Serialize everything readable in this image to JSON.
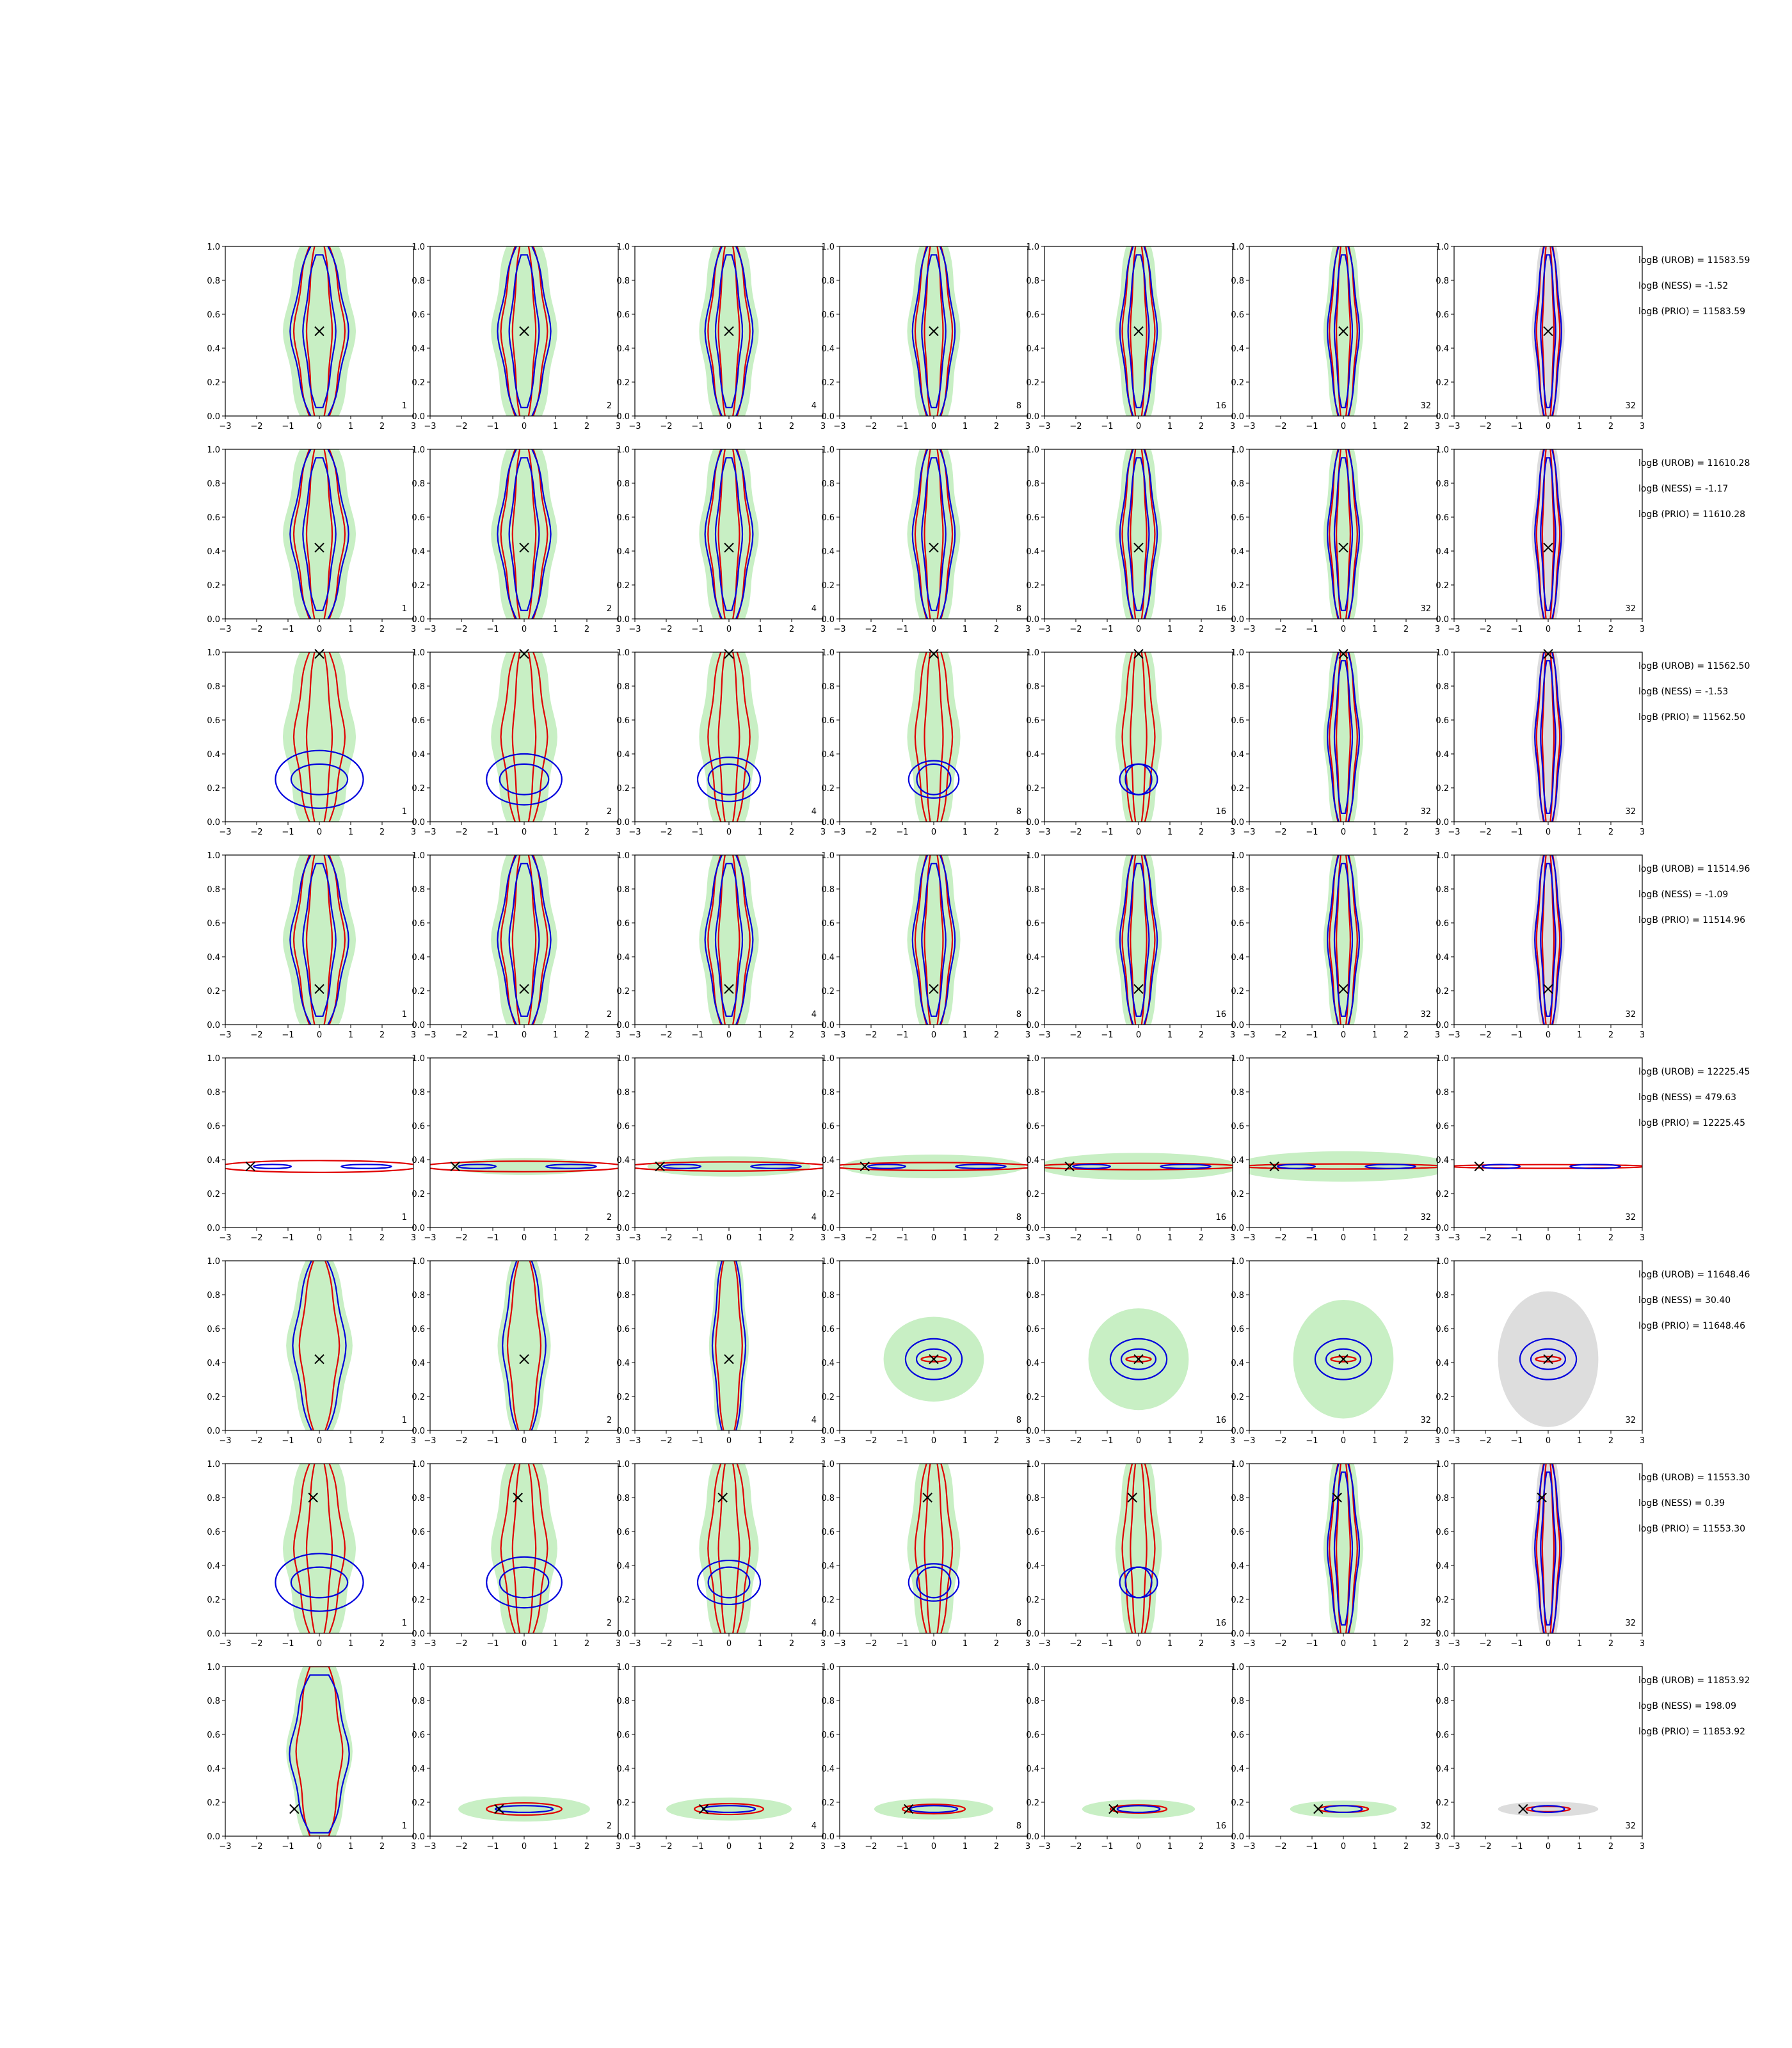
{
  "chart_data": {
    "type": "contour-grid",
    "xlim": [
      -3,
      3
    ],
    "ylim": [
      0,
      1
    ],
    "xticks": [
      -3,
      -2,
      -1,
      0,
      1,
      2,
      3
    ],
    "yticks": [
      0.0,
      0.2,
      0.4,
      0.6,
      0.8,
      1.0
    ],
    "ytick_labels": [
      "0.0",
      "0.2",
      "0.4",
      "0.6",
      "0.8",
      "1.0"
    ],
    "grid": false,
    "colors": {
      "green_fill": "#c8efc4",
      "grey_fill": "#dddddd",
      "red_contour": "#e00000",
      "blue_contour": "#0000dd",
      "marker": "#000000"
    },
    "panel_labels": [
      [
        "1",
        "2",
        "4",
        "8",
        "16",
        "32",
        "32"
      ],
      [
        "1",
        "2",
        "4",
        "8",
        "16",
        "32",
        "32"
      ],
      [
        "1",
        "2",
        "4",
        "8",
        "16",
        "32",
        "32"
      ],
      [
        "1",
        "2",
        "4",
        "8",
        "16",
        "32",
        "32"
      ],
      [
        "1",
        "2",
        "4",
        "8",
        "16",
        "32",
        "32"
      ],
      [
        "1",
        "2",
        "4",
        "8",
        "16",
        "32",
        "32"
      ],
      [
        "1",
        "2",
        "4",
        "8",
        "16",
        "32",
        "32"
      ],
      [
        "1",
        "2",
        "4",
        "8",
        "16",
        "32",
        "32"
      ]
    ],
    "rows": [
      {
        "mode": "vertical",
        "cross": [
          0,
          0.5
        ],
        "stats": [
          "logB (UROB) = 11583.59",
          "logB (NESS) = -1.52",
          "logB (PRIO) = 11583.59"
        ]
      },
      {
        "mode": "vertical",
        "cross": [
          0,
          0.42
        ],
        "stats": [
          "logB (UROB) = 11610.28",
          "logB (NESS) = -1.17",
          "logB (PRIO) = 11610.28"
        ]
      },
      {
        "mode": "vertical_blob",
        "cross": [
          0,
          0.99
        ],
        "stats": [
          "logB (UROB) = 11562.50",
          "logB (NESS) = -1.53",
          "logB (PRIO) = 11562.50"
        ]
      },
      {
        "mode": "vertical",
        "cross": [
          0,
          0.21
        ],
        "stats": [
          "logB (UROB) = 11514.96",
          "logB (NESS) = -1.09",
          "logB (PRIO) = 11514.96"
        ]
      },
      {
        "mode": "horizontal",
        "cross": [
          -2.2,
          0.36
        ],
        "stats": [
          "logB (UROB) = 12225.45",
          "logB (NESS) = 479.63",
          "logB (PRIO) = 12225.45"
        ]
      },
      {
        "mode": "blob",
        "cross": [
          0,
          0.42
        ],
        "stats": [
          "logB (UROB) = 11648.46",
          "logB (NESS) = 30.40",
          "logB (PRIO) = 11648.46"
        ]
      },
      {
        "mode": "vertical_blob",
        "cross": [
          -0.2,
          0.8
        ],
        "stats": [
          "logB (UROB) = 11553.30",
          "logB (NESS) = 0.39",
          "logB (PRIO) = 11553.30"
        ]
      },
      {
        "mode": "horizontal_low",
        "cross": [
          -0.8,
          0.16
        ],
        "stats": [
          "logB (UROB) = 11853.92",
          "logB (NESS) = 198.09",
          "logB (PRIO) = 11853.92"
        ]
      }
    ]
  }
}
